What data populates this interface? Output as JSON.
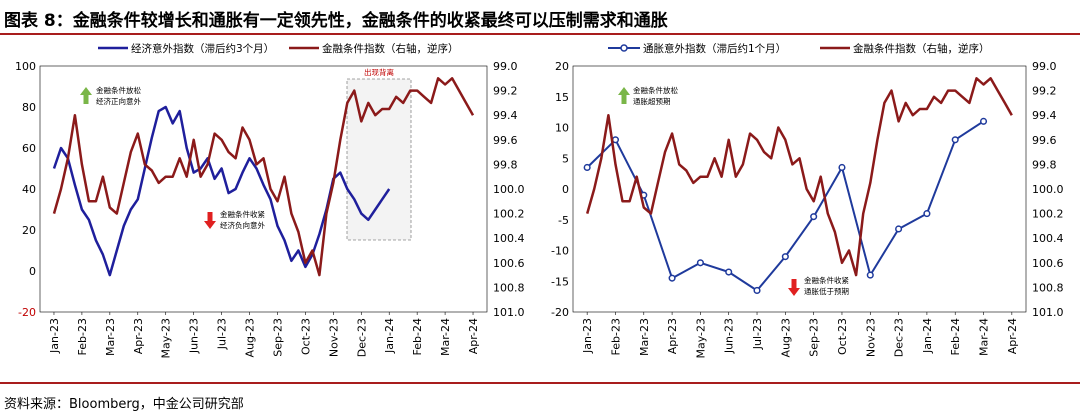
{
  "page": {
    "title": "图表 8：金融条件较增长和通胀有一定领先性，金融条件的收紧最终可以压制需求和通胀",
    "source": "资料来源：Bloomberg，中金公司研究部"
  },
  "colors": {
    "growth": "#1f1f9c",
    "finance": "#8b1a1a",
    "inflation": "#1f3a9c",
    "up_arrow": "#7ab648",
    "down_arrow": "#e02020",
    "divider": "#a81d1d"
  },
  "chart_data": [
    {
      "type": "line",
      "title": "",
      "months": [
        "Jan-23",
        "Feb-23",
        "Mar-23",
        "Apr-23",
        "May-23",
        "Jun-23",
        "Jul-23",
        "Aug-23",
        "Sep-23",
        "Oct-23",
        "Nov-23",
        "Dec-23",
        "Jan-24",
        "Feb-24",
        "Mar-24",
        "Apr-24"
      ],
      "y_left": {
        "ylim": [
          -20,
          100
        ],
        "ticks": [
          -20,
          0,
          20,
          40,
          60,
          80,
          100
        ]
      },
      "y_right": {
        "ylim": [
          99.0,
          101.0
        ],
        "inverted": true,
        "ticks": [
          "99.0",
          "99.2",
          "99.4",
          "99.6",
          "99.8",
          "100.0",
          "100.2",
          "100.4",
          "100.6",
          "100.8",
          "101.0"
        ]
      },
      "series": [
        {
          "name": "经济意外指数（滞后约3个月）",
          "axis": "left",
          "x": [
            0,
            0.25,
            0.5,
            0.75,
            1,
            1.25,
            1.5,
            1.75,
            2,
            2.25,
            2.5,
            2.75,
            3,
            3.25,
            3.5,
            3.75,
            4,
            4.25,
            4.5,
            4.75,
            5,
            5.25,
            5.5,
            5.75,
            6,
            6.25,
            6.5,
            6.75,
            7,
            7.25,
            7.5,
            7.75,
            8,
            8.25,
            8.5,
            8.75,
            9,
            9.25,
            9.5,
            9.75,
            10,
            10.25,
            10.5,
            10.75,
            11,
            11.25,
            11.5,
            11.75,
            12
          ],
          "values": [
            50,
            60,
            55,
            42,
            30,
            25,
            15,
            8,
            -2,
            10,
            22,
            30,
            35,
            50,
            65,
            78,
            80,
            72,
            78,
            60,
            48,
            50,
            55,
            45,
            50,
            38,
            40,
            48,
            55,
            50,
            42,
            35,
            22,
            15,
            5,
            10,
            2,
            8,
            18,
            30,
            45,
            48,
            40,
            35,
            28,
            25,
            30,
            35,
            40
          ]
        },
        {
          "name": "金融条件指数（右轴，逆序）",
          "axis": "right",
          "x": [
            0,
            0.25,
            0.5,
            0.75,
            1,
            1.25,
            1.5,
            1.75,
            2,
            2.25,
            2.5,
            2.75,
            3,
            3.25,
            3.5,
            3.75,
            4,
            4.25,
            4.5,
            4.75,
            5,
            5.25,
            5.5,
            5.75,
            6,
            6.25,
            6.5,
            6.75,
            7,
            7.25,
            7.5,
            7.75,
            8,
            8.25,
            8.5,
            8.75,
            9,
            9.25,
            9.5,
            9.75,
            10,
            10.25,
            10.5,
            10.75,
            11,
            11.25,
            11.5,
            11.75,
            12,
            12.25,
            12.5,
            12.75,
            13,
            13.25,
            13.5,
            13.75,
            14,
            14.25,
            14.5,
            14.75,
            15
          ],
          "values": [
            100.2,
            100.0,
            99.75,
            99.4,
            99.8,
            100.1,
            100.1,
            99.9,
            100.15,
            100.2,
            99.95,
            99.7,
            99.55,
            99.8,
            99.85,
            99.95,
            99.9,
            99.9,
            99.75,
            99.9,
            99.6,
            99.9,
            99.8,
            99.55,
            99.6,
            99.7,
            99.75,
            99.5,
            99.6,
            99.8,
            99.75,
            100.0,
            100.1,
            99.9,
            100.2,
            100.35,
            100.6,
            100.5,
            100.7,
            100.2,
            99.95,
            99.6,
            99.3,
            99.2,
            99.45,
            99.3,
            99.4,
            99.35,
            99.35,
            99.25,
            99.3,
            99.2,
            99.2,
            99.25,
            99.3,
            99.1,
            99.15,
            99.1,
            99.2,
            99.3,
            99.4
          ]
        }
      ],
      "annotations": {
        "box_label": "出现背离",
        "up_text_1": "金融条件放松",
        "up_text_2": "经济正向意外",
        "down_text_1": "金融条件收紧",
        "down_text_2": "经济负向意外"
      }
    },
    {
      "type": "line",
      "title": "",
      "months": [
        "Jan-23",
        "Feb-23",
        "Mar-23",
        "Apr-23",
        "May-23",
        "Jun-23",
        "Jul-23",
        "Aug-23",
        "Sep-23",
        "Oct-23",
        "Nov-23",
        "Dec-23",
        "Jan-24",
        "Feb-24",
        "Mar-24",
        "Apr-24"
      ],
      "y_left": {
        "ylim": [
          -20,
          20
        ],
        "ticks": [
          -20,
          -15,
          -10,
          -5,
          0,
          5,
          10,
          15,
          20
        ]
      },
      "y_right": {
        "ylim": [
          99.0,
          101.0
        ],
        "inverted": true,
        "ticks": [
          "99.0",
          "99.2",
          "99.4",
          "99.6",
          "99.8",
          "100.0",
          "100.2",
          "100.4",
          "100.6",
          "100.8",
          "101.0"
        ]
      },
      "series": [
        {
          "name": "通胀意外指数（滞后约1个月）",
          "axis": "left",
          "marker": "circle",
          "x": [
            0,
            1,
            2,
            3,
            4,
            5,
            6,
            7,
            8,
            9,
            10,
            11,
            12,
            13,
            14
          ],
          "values": [
            3.5,
            8.0,
            -1.0,
            -14.5,
            -12.0,
            -13.5,
            -16.5,
            -11.0,
            -4.5,
            3.5,
            -14.0,
            -6.5,
            -4.0,
            8.0,
            11.0
          ]
        },
        {
          "name": "金融条件指数（右轴，逆序）",
          "axis": "right",
          "x": [
            0,
            0.25,
            0.5,
            0.75,
            1,
            1.25,
            1.5,
            1.75,
            2,
            2.25,
            2.5,
            2.75,
            3,
            3.25,
            3.5,
            3.75,
            4,
            4.25,
            4.5,
            4.75,
            5,
            5.25,
            5.5,
            5.75,
            6,
            6.25,
            6.5,
            6.75,
            7,
            7.25,
            7.5,
            7.75,
            8,
            8.25,
            8.5,
            8.75,
            9,
            9.25,
            9.5,
            9.75,
            10,
            10.25,
            10.5,
            10.75,
            11,
            11.25,
            11.5,
            11.75,
            12,
            12.25,
            12.5,
            12.75,
            13,
            13.25,
            13.5,
            13.75,
            14,
            14.25,
            14.5,
            14.75,
            15
          ],
          "values": [
            100.2,
            100.0,
            99.75,
            99.4,
            99.8,
            100.1,
            100.1,
            99.9,
            100.15,
            100.2,
            99.95,
            99.7,
            99.55,
            99.8,
            99.85,
            99.95,
            99.9,
            99.9,
            99.75,
            99.9,
            99.6,
            99.9,
            99.8,
            99.55,
            99.6,
            99.7,
            99.75,
            99.5,
            99.6,
            99.8,
            99.75,
            100.0,
            100.1,
            99.9,
            100.2,
            100.35,
            100.6,
            100.5,
            100.7,
            100.2,
            99.95,
            99.6,
            99.3,
            99.2,
            99.45,
            99.3,
            99.4,
            99.35,
            99.35,
            99.25,
            99.3,
            99.2,
            99.2,
            99.25,
            99.3,
            99.1,
            99.15,
            99.1,
            99.2,
            99.3,
            99.4
          ]
        }
      ],
      "annotations": {
        "up_text_1": "金融条件放松",
        "up_text_2": "通胀超预期",
        "down_text_1": "金融条件收紧",
        "down_text_2": "通胀低于预期"
      }
    }
  ]
}
